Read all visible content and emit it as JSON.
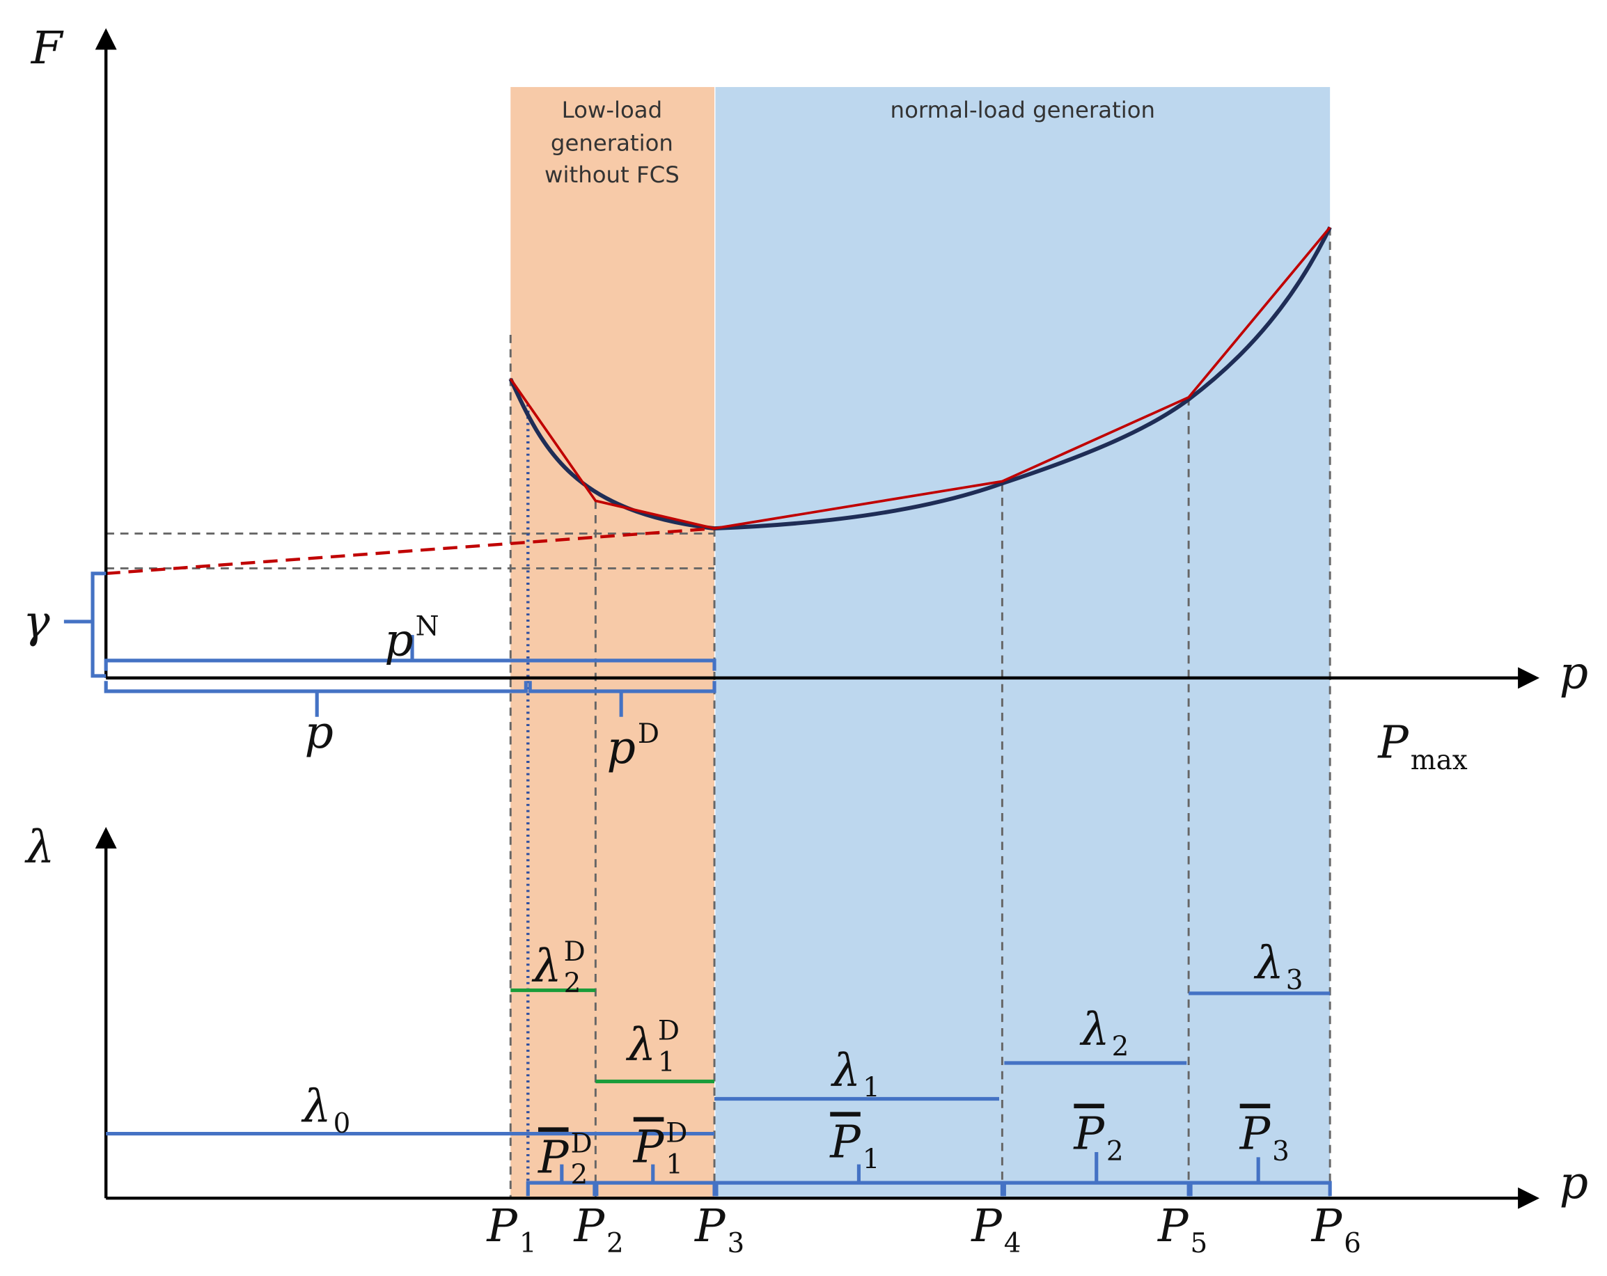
{
  "top_panel": {
    "y_axis_label": "F",
    "x_axis_label": "p",
    "regions": [
      {
        "label_lines": [
          "Low-load",
          "generation",
          "without FCS"
        ]
      },
      {
        "label_lines": [
          "normal-load generation"
        ]
      }
    ],
    "labels": [
      {
        "base": "γ"
      },
      {
        "base": "p",
        "sup": "N"
      },
      {
        "base": "p"
      },
      {
        "base": "p",
        "sup": "D"
      },
      {
        "base": "P",
        "sub": "max"
      }
    ]
  },
  "bottom_panel": {
    "y_axis_label": "λ",
    "x_axis_label": "p",
    "labels": [
      {
        "base": "λ",
        "sub": "2",
        "sup": "D"
      },
      {
        "base": "λ",
        "sub": "1",
        "sup": "D"
      },
      {
        "base": "λ",
        "sub": "0"
      },
      {
        "base": "λ",
        "sub": "1"
      },
      {
        "base": "λ",
        "sub": "2"
      },
      {
        "base": "λ",
        "sub": "3"
      },
      {
        "base": "P",
        "sub": "2",
        "sup": "D",
        "overline": true
      },
      {
        "base": "P",
        "sub": "1",
        "sup": "D",
        "overline": true
      },
      {
        "base": "P",
        "sub": "1",
        "overline": true
      },
      {
        "base": "P",
        "sub": "2",
        "overline": true
      },
      {
        "base": "P",
        "sub": "3",
        "overline": true
      }
    ],
    "points": [
      {
        "base": "P",
        "sub": "1"
      },
      {
        "base": "P",
        "sub": "2"
      },
      {
        "base": "P",
        "sub": "3"
      },
      {
        "base": "P",
        "sub": "4"
      },
      {
        "base": "P",
        "sub": "5"
      },
      {
        "base": "P",
        "sub": "6"
      }
    ]
  }
}
